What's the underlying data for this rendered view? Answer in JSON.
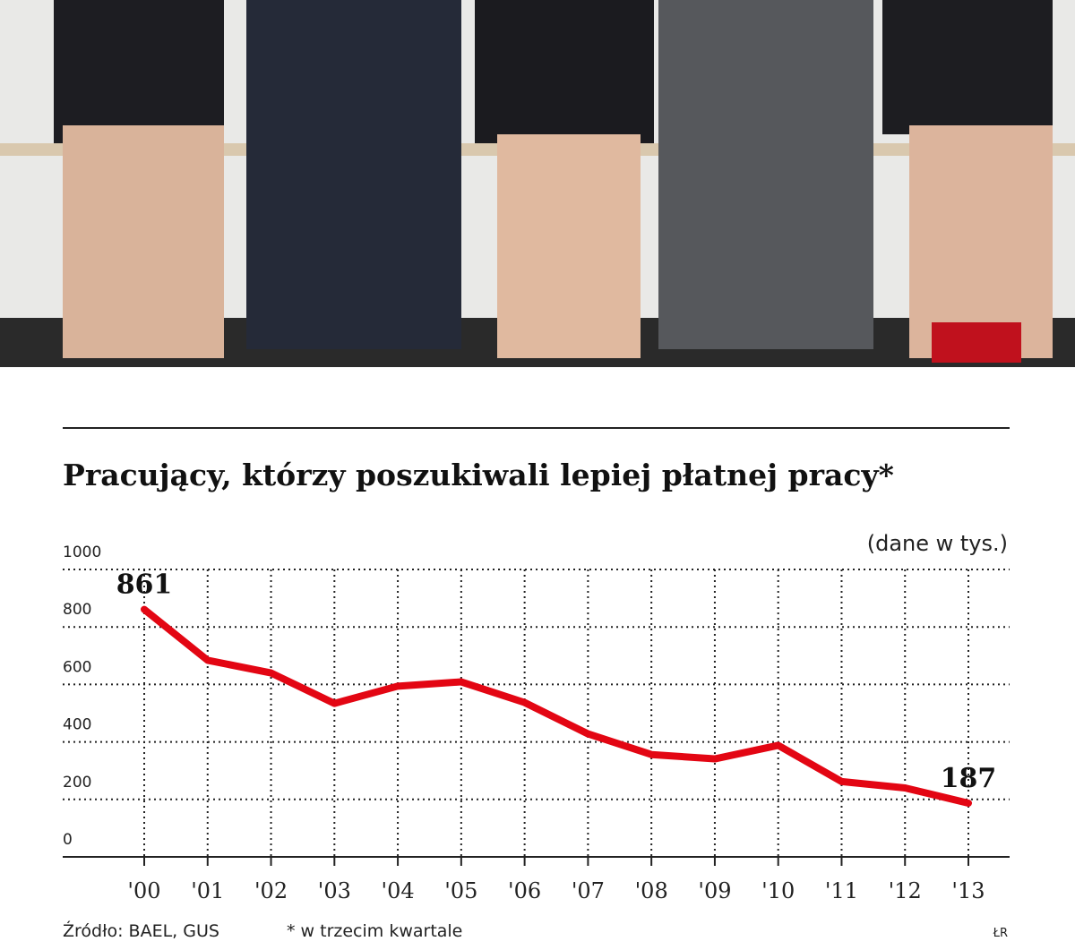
{
  "chart_data": {
    "type": "line",
    "title": "Pracujący, którzy poszukiwali lepiej płatnej pracy*",
    "unit": "(dane w tys.)",
    "source": "Źródło: BAEL, GUS",
    "footnote": "* w trzecim kwartale",
    "credit": "ŁR",
    "categories": [
      "'00",
      "'01",
      "'02",
      "'03",
      "'04",
      "'05",
      "'06",
      "'07",
      "'08",
      "'09",
      "'10",
      "'11",
      "'12",
      "'13"
    ],
    "values": [
      861,
      684,
      640,
      534,
      594,
      609,
      537,
      428,
      356,
      341,
      388,
      262,
      240,
      187
    ],
    "color": "#e30613",
    "data_labels": "first_last",
    "ylim": [
      0,
      1000
    ],
    "yticks": [
      0,
      200,
      400,
      600,
      800,
      1000
    ],
    "grid": true
  }
}
